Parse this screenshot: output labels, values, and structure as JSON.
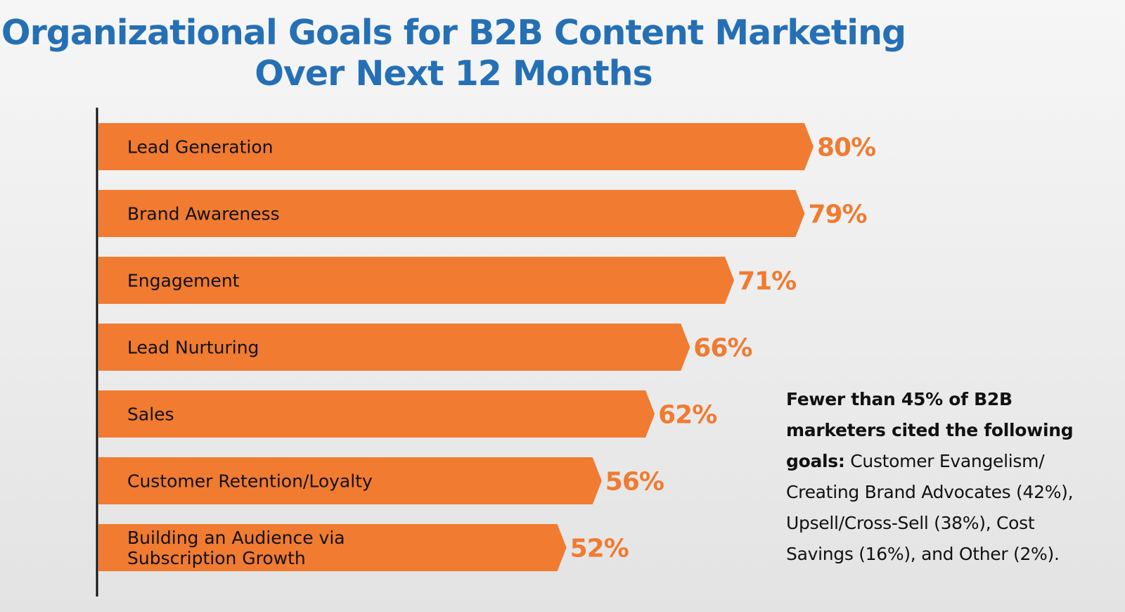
{
  "title": {
    "line1": "Organizational Goals for B2B Content Marketing",
    "line2": "Over Next 12 Months"
  },
  "colors": {
    "title": "#2570b5",
    "bar": "#f07b31",
    "value_label": "#f07b31",
    "axis": "#111111"
  },
  "chart_data": {
    "type": "bar",
    "orientation": "horizontal",
    "title": "Organizational Goals for B2B Content Marketing Over Next 12 Months",
    "categories": [
      [
        "Lead Generation"
      ],
      [
        "Brand Awareness"
      ],
      [
        "Engagement"
      ],
      [
        "Lead Nurturing"
      ],
      [
        "Sales"
      ],
      [
        "Customer Retention/Loyalty"
      ],
      [
        "Building an Audience via",
        "Subscription Growth"
      ]
    ],
    "values": [
      80,
      79,
      71,
      66,
      62,
      56,
      52
    ],
    "value_labels": [
      "80%",
      "79%",
      "71%",
      "66%",
      "62%",
      "56%",
      "52%"
    ],
    "value_unit": "%",
    "xlim": [
      0,
      100
    ],
    "grid": false,
    "legend": "none"
  },
  "note": {
    "bold": "Fewer than 45% of B2B marketers cited the following goals:",
    "text": " Customer Evangelism/ Creating Brand Advocates (42%), Upsell/Cross-Sell (38%), Cost Savings (16%), and Other (2%)."
  }
}
